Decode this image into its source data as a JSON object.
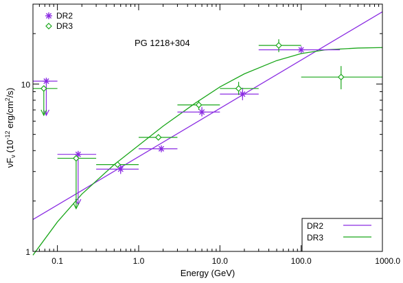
{
  "chart_data": {
    "type": "scatter",
    "title": "PG 1218+304",
    "xlabel": "Energy (GeV)",
    "ylabel": {
      "main": "νF",
      "sub": "ν",
      "open": "(10",
      "exp": "-12",
      "mid": " erg/cm",
      "sq": "2",
      "close": "/s)"
    },
    "xscale": "log",
    "yscale": "log",
    "xlim": [
      0.05,
      1000
    ],
    "ylim": [
      1,
      30
    ],
    "x_ticks": [
      {
        "v": 0.1,
        "label": "0.1"
      },
      {
        "v": 1,
        "label": "1.0"
      },
      {
        "v": 10,
        "label": "10.0"
      },
      {
        "v": 100,
        "label": "100.0"
      },
      {
        "v": 1000,
        "label": "1000.0"
      }
    ],
    "y_ticks": [
      {
        "v": 1,
        "label": "1"
      },
      {
        "v": 10,
        "label": "10"
      }
    ],
    "legend_top": {
      "position": "top-left",
      "entries": [
        {
          "label": "DR2",
          "marker": "asterisk",
          "color": "#8a2be2"
        },
        {
          "label": "DR3",
          "marker": "diamond",
          "color": "#19a619"
        }
      ]
    },
    "legend_bottom": {
      "position": "bottom-right",
      "entries": [
        {
          "label": "DR2",
          "line_color": "#8a2be2"
        },
        {
          "label": "DR3",
          "line_color": "#19a619"
        }
      ]
    },
    "series": [
      {
        "name": "DR2",
        "color": "#8a2be2",
        "marker": "asterisk",
        "points": [
          {
            "x": 0.073,
            "y": 10.4,
            "xerr": [
              0.05,
              0.1
            ],
            "upper_limit": true,
            "ul_to": 6.5
          },
          {
            "x": 0.18,
            "y": 3.8,
            "xerr": [
              0.1,
              0.3
            ],
            "upper_limit": true,
            "ul_to": 1.9
          },
          {
            "x": 0.6,
            "y": 3.1,
            "xerr": [
              0.3,
              1.0
            ],
            "yerr": [
              2.9,
              3.3
            ]
          },
          {
            "x": 1.9,
            "y": 4.1,
            "xerr": [
              1.0,
              3.0
            ]
          },
          {
            "x": 6.0,
            "y": 6.8,
            "xerr": [
              3.0,
              10.0
            ],
            "yerr": [
              6.4,
              7.3
            ]
          },
          {
            "x": 19,
            "y": 8.7,
            "xerr": [
              10,
              30
            ],
            "yerr": [
              8.0,
              9.5
            ]
          },
          {
            "x": 100,
            "y": 16.0,
            "xerr": [
              30,
              300
            ]
          }
        ]
      },
      {
        "name": "DR3",
        "color": "#19a619",
        "marker": "diamond",
        "points": [
          {
            "x": 0.068,
            "y": 9.4,
            "xerr": [
              0.05,
              0.1
            ],
            "upper_limit": true,
            "ul_to": 6.5
          },
          {
            "x": 0.17,
            "y": 3.6,
            "xerr": [
              0.1,
              0.3
            ],
            "upper_limit": true,
            "ul_to": 1.8
          },
          {
            "x": 0.55,
            "y": 3.3,
            "xerr": [
              0.3,
              1.0
            ]
          },
          {
            "x": 1.75,
            "y": 4.8,
            "xerr": [
              1.0,
              3.0
            ]
          },
          {
            "x": 5.5,
            "y": 7.5,
            "xerr": [
              3.0,
              10.0
            ],
            "yerr": [
              7.0,
              8.0
            ]
          },
          {
            "x": 17,
            "y": 9.4,
            "xerr": [
              10,
              30
            ],
            "yerr": [
              8.6,
              10.3
            ]
          },
          {
            "x": 53,
            "y": 17.0,
            "xerr": [
              30,
              100
            ],
            "yerr": [
              15.5,
              18.5
            ]
          },
          {
            "x": 310,
            "y": 11.0,
            "xerr": [
              100,
              1000
            ],
            "yerr": [
              9.3,
              12.8
            ]
          }
        ]
      }
    ],
    "fits": [
      {
        "name": "DR2",
        "color": "#8a2be2",
        "kind": "power-law",
        "points": [
          [
            0.05,
            1.55
          ],
          [
            1000,
            27
          ]
        ]
      },
      {
        "name": "DR3",
        "color": "#19a619",
        "kind": "curved",
        "points": [
          [
            0.05,
            0.95
          ],
          [
            0.1,
            1.5
          ],
          [
            0.2,
            2.2
          ],
          [
            0.5,
            3.3
          ],
          [
            1,
            4.3
          ],
          [
            2,
            5.6
          ],
          [
            5,
            7.7
          ],
          [
            10,
            9.6
          ],
          [
            20,
            11.5
          ],
          [
            50,
            13.8
          ],
          [
            100,
            15.2
          ],
          [
            200,
            16.0
          ],
          [
            500,
            16.4
          ],
          [
            1000,
            16.5
          ]
        ]
      }
    ]
  }
}
